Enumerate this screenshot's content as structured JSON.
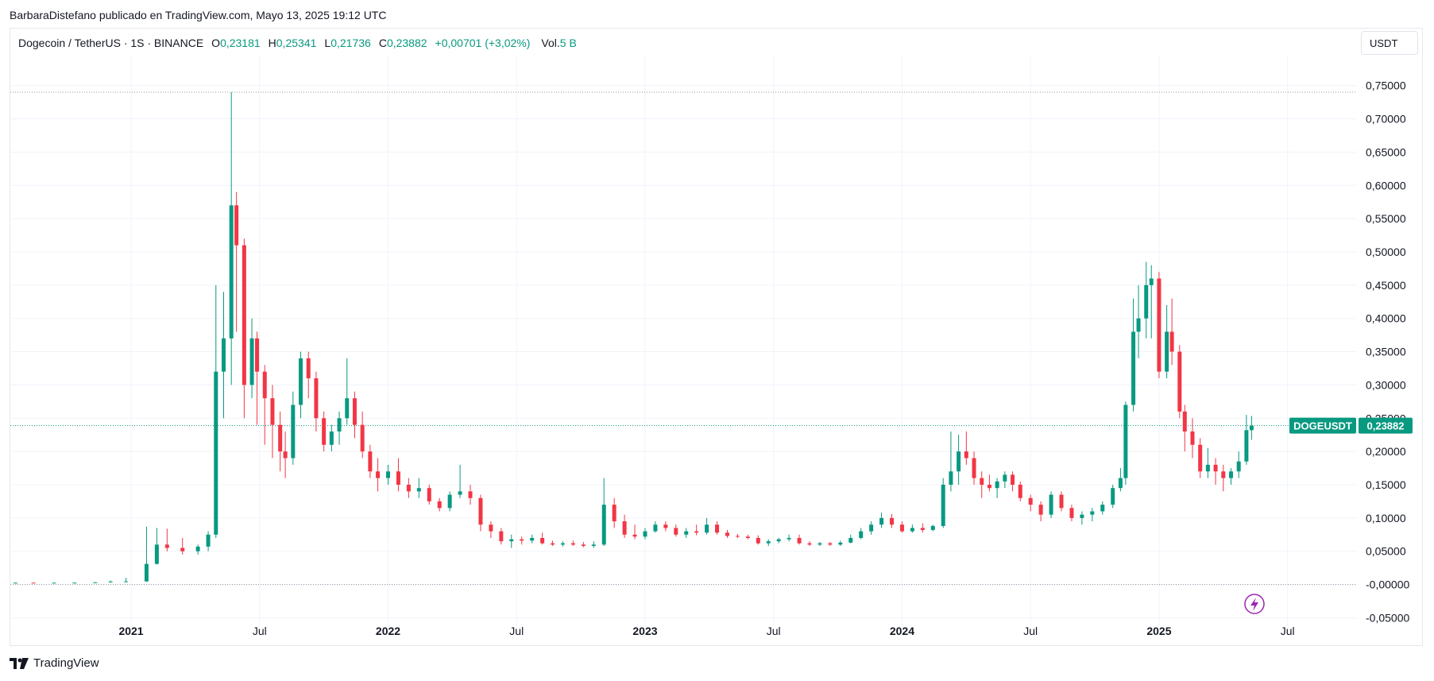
{
  "header": {
    "published_text": "BarbaraDistefano publicado en TradingView.com, Mayo 13, 2025 19:12 UTC"
  },
  "legend": {
    "symbol": "Dogecoin / TetherUS · 1S · BINANCE",
    "open_label": "O",
    "open_value": "0,23181",
    "high_label": "H",
    "high_value": "0,25341",
    "low_label": "L",
    "low_value": "0,21736",
    "close_label": "C",
    "close_value": "0,23882",
    "change": "+0,00701 (+3,02%)",
    "volume_label": "Vol.",
    "volume_value": "5 B"
  },
  "currency_button": "USDT",
  "price_tag": {
    "symbol": "DOGEUSDT",
    "price": "0,23882"
  },
  "footer": {
    "logo_text": "TradingView"
  },
  "colors": {
    "up": "#089981",
    "down": "#f23645",
    "grid": "#f0f3fa",
    "accent_icon": "#9c27b0"
  },
  "chart_data": {
    "type": "candlestick",
    "interval": "1W",
    "y_axis": {
      "ticks": [
        "0,75000",
        "0,70000",
        "0,65000",
        "0,60000",
        "0,55000",
        "0,50000",
        "0,45000",
        "0,40000",
        "0,35000",
        "0,30000",
        "0,25000",
        "0,20000",
        "0,15000",
        "0,10000",
        "0,05000",
        "-0,00000",
        "-0,05000"
      ],
      "tick_values": [
        0.75,
        0.7,
        0.65,
        0.6,
        0.55,
        0.5,
        0.45,
        0.4,
        0.35,
        0.3,
        0.25,
        0.2,
        0.15,
        0.1,
        0.05,
        0.0,
        -0.05
      ],
      "range": [
        -0.065,
        0.795
      ]
    },
    "x_axis": {
      "ticks": [
        {
          "label": "2021",
          "bold": true,
          "t": 2021.0
        },
        {
          "label": "Jul",
          "bold": false,
          "t": 2021.5
        },
        {
          "label": "2022",
          "bold": true,
          "t": 2022.0
        },
        {
          "label": "Jul",
          "bold": false,
          "t": 2022.5
        },
        {
          "label": "2023",
          "bold": true,
          "t": 2023.0
        },
        {
          "label": "Jul",
          "bold": false,
          "t": 2023.5
        },
        {
          "label": "2024",
          "bold": true,
          "t": 2024.0
        },
        {
          "label": "Jul",
          "bold": false,
          "t": 2024.5
        },
        {
          "label": "2025",
          "bold": true,
          "t": 2025.0
        },
        {
          "label": "Jul",
          "bold": false,
          "t": 2025.5
        }
      ],
      "range": [
        2020.53,
        2025.77
      ]
    },
    "reference_lines": [
      0.74,
      0.0
    ],
    "last_price": 0.23882,
    "candles": [
      [
        2020.55,
        0.0026,
        0.0028,
        0.0025,
        0.0027
      ],
      [
        2020.62,
        0.0027,
        0.0029,
        0.0026,
        0.0026
      ],
      [
        2020.7,
        0.0026,
        0.0028,
        0.0025,
        0.0027
      ],
      [
        2020.78,
        0.0027,
        0.003,
        0.0026,
        0.0028
      ],
      [
        2020.86,
        0.0028,
        0.0035,
        0.0027,
        0.0033
      ],
      [
        2020.92,
        0.0033,
        0.006,
        0.003,
        0.0045
      ],
      [
        2020.98,
        0.0045,
        0.01,
        0.004,
        0.0047
      ],
      [
        2021.06,
        0.0047,
        0.087,
        0.004,
        0.031
      ],
      [
        2021.1,
        0.031,
        0.085,
        0.03,
        0.06
      ],
      [
        2021.14,
        0.06,
        0.084,
        0.05,
        0.055
      ],
      [
        2021.2,
        0.055,
        0.07,
        0.045,
        0.05
      ],
      [
        2021.26,
        0.05,
        0.06,
        0.045,
        0.057
      ],
      [
        2021.3,
        0.057,
        0.08,
        0.05,
        0.075
      ],
      [
        2021.33,
        0.075,
        0.45,
        0.07,
        0.32
      ],
      [
        2021.36,
        0.32,
        0.44,
        0.25,
        0.37
      ],
      [
        2021.39,
        0.37,
        0.74,
        0.3,
        0.57
      ],
      [
        2021.41,
        0.57,
        0.59,
        0.38,
        0.51
      ],
      [
        2021.44,
        0.51,
        0.52,
        0.25,
        0.3
      ],
      [
        2021.47,
        0.3,
        0.4,
        0.28,
        0.37
      ],
      [
        2021.49,
        0.37,
        0.38,
        0.24,
        0.32
      ],
      [
        2021.52,
        0.32,
        0.33,
        0.21,
        0.28
      ],
      [
        2021.55,
        0.28,
        0.3,
        0.19,
        0.24
      ],
      [
        2021.58,
        0.24,
        0.26,
        0.17,
        0.2
      ],
      [
        2021.6,
        0.2,
        0.23,
        0.16,
        0.19
      ],
      [
        2021.63,
        0.19,
        0.29,
        0.18,
        0.27
      ],
      [
        2021.66,
        0.27,
        0.35,
        0.25,
        0.34
      ],
      [
        2021.69,
        0.34,
        0.35,
        0.28,
        0.31
      ],
      [
        2021.72,
        0.31,
        0.32,
        0.23,
        0.25
      ],
      [
        2021.75,
        0.25,
        0.26,
        0.2,
        0.21
      ],
      [
        2021.78,
        0.21,
        0.24,
        0.2,
        0.23
      ],
      [
        2021.81,
        0.23,
        0.26,
        0.21,
        0.25
      ],
      [
        2021.84,
        0.25,
        0.34,
        0.24,
        0.28
      ],
      [
        2021.87,
        0.28,
        0.29,
        0.22,
        0.24
      ],
      [
        2021.9,
        0.24,
        0.26,
        0.19,
        0.2
      ],
      [
        2021.93,
        0.2,
        0.21,
        0.16,
        0.17
      ],
      [
        2021.96,
        0.17,
        0.19,
        0.14,
        0.16
      ],
      [
        2022.0,
        0.16,
        0.18,
        0.15,
        0.17
      ],
      [
        2022.04,
        0.17,
        0.19,
        0.14,
        0.15
      ],
      [
        2022.08,
        0.15,
        0.16,
        0.13,
        0.14
      ],
      [
        2022.12,
        0.14,
        0.16,
        0.13,
        0.145
      ],
      [
        2022.16,
        0.145,
        0.15,
        0.12,
        0.125
      ],
      [
        2022.2,
        0.125,
        0.13,
        0.11,
        0.115
      ],
      [
        2022.24,
        0.115,
        0.14,
        0.11,
        0.135
      ],
      [
        2022.28,
        0.135,
        0.18,
        0.13,
        0.14
      ],
      [
        2022.32,
        0.14,
        0.15,
        0.12,
        0.13
      ],
      [
        2022.36,
        0.13,
        0.135,
        0.08,
        0.09
      ],
      [
        2022.4,
        0.09,
        0.095,
        0.07,
        0.08
      ],
      [
        2022.44,
        0.08,
        0.085,
        0.06,
        0.065
      ],
      [
        2022.48,
        0.065,
        0.075,
        0.055,
        0.068
      ],
      [
        2022.52,
        0.068,
        0.072,
        0.06,
        0.066
      ],
      [
        2022.56,
        0.066,
        0.075,
        0.062,
        0.07
      ],
      [
        2022.6,
        0.07,
        0.078,
        0.06,
        0.062
      ],
      [
        2022.64,
        0.062,
        0.066,
        0.058,
        0.06
      ],
      [
        2022.68,
        0.06,
        0.065,
        0.057,
        0.062
      ],
      [
        2022.72,
        0.062,
        0.066,
        0.058,
        0.06
      ],
      [
        2022.76,
        0.06,
        0.064,
        0.056,
        0.058
      ],
      [
        2022.8,
        0.058,
        0.065,
        0.055,
        0.06
      ],
      [
        2022.84,
        0.06,
        0.16,
        0.058,
        0.12
      ],
      [
        2022.88,
        0.12,
        0.13,
        0.085,
        0.095
      ],
      [
        2022.92,
        0.095,
        0.105,
        0.07,
        0.075
      ],
      [
        2022.96,
        0.075,
        0.09,
        0.068,
        0.072
      ],
      [
        2023.0,
        0.072,
        0.085,
        0.068,
        0.08
      ],
      [
        2023.04,
        0.08,
        0.095,
        0.078,
        0.09
      ],
      [
        2023.08,
        0.09,
        0.095,
        0.08,
        0.085
      ],
      [
        2023.12,
        0.085,
        0.09,
        0.072,
        0.075
      ],
      [
        2023.16,
        0.075,
        0.085,
        0.07,
        0.08
      ],
      [
        2023.2,
        0.08,
        0.09,
        0.074,
        0.078
      ],
      [
        2023.24,
        0.078,
        0.1,
        0.075,
        0.09
      ],
      [
        2023.28,
        0.09,
        0.095,
        0.075,
        0.078
      ],
      [
        2023.32,
        0.078,
        0.082,
        0.07,
        0.073
      ],
      [
        2023.36,
        0.073,
        0.076,
        0.07,
        0.072
      ],
      [
        2023.4,
        0.072,
        0.075,
        0.068,
        0.07
      ],
      [
        2023.44,
        0.07,
        0.074,
        0.06,
        0.062
      ],
      [
        2023.48,
        0.062,
        0.068,
        0.058,
        0.065
      ],
      [
        2023.52,
        0.065,
        0.07,
        0.062,
        0.068
      ],
      [
        2023.56,
        0.068,
        0.075,
        0.065,
        0.07
      ],
      [
        2023.6,
        0.07,
        0.075,
        0.06,
        0.062
      ],
      [
        2023.64,
        0.062,
        0.065,
        0.058,
        0.06
      ],
      [
        2023.68,
        0.06,
        0.064,
        0.058,
        0.062
      ],
      [
        2023.72,
        0.062,
        0.064,
        0.058,
        0.06
      ],
      [
        2023.76,
        0.06,
        0.066,
        0.058,
        0.063
      ],
      [
        2023.8,
        0.063,
        0.075,
        0.062,
        0.07
      ],
      [
        2023.84,
        0.07,
        0.085,
        0.068,
        0.08
      ],
      [
        2023.88,
        0.08,
        0.095,
        0.075,
        0.09
      ],
      [
        2023.92,
        0.09,
        0.108,
        0.085,
        0.1
      ],
      [
        2023.96,
        0.1,
        0.106,
        0.085,
        0.09
      ],
      [
        2024.0,
        0.09,
        0.095,
        0.078,
        0.08
      ],
      [
        2024.04,
        0.08,
        0.09,
        0.078,
        0.085
      ],
      [
        2024.08,
        0.085,
        0.092,
        0.078,
        0.082
      ],
      [
        2024.12,
        0.082,
        0.09,
        0.08,
        0.088
      ],
      [
        2024.16,
        0.088,
        0.16,
        0.085,
        0.15
      ],
      [
        2024.19,
        0.15,
        0.23,
        0.14,
        0.17
      ],
      [
        2024.22,
        0.17,
        0.225,
        0.15,
        0.2
      ],
      [
        2024.25,
        0.2,
        0.23,
        0.18,
        0.19
      ],
      [
        2024.28,
        0.19,
        0.2,
        0.15,
        0.16
      ],
      [
        2024.31,
        0.16,
        0.17,
        0.13,
        0.15
      ],
      [
        2024.34,
        0.15,
        0.165,
        0.14,
        0.145
      ],
      [
        2024.37,
        0.145,
        0.16,
        0.13,
        0.155
      ],
      [
        2024.4,
        0.155,
        0.17,
        0.145,
        0.165
      ],
      [
        2024.43,
        0.165,
        0.17,
        0.14,
        0.15
      ],
      [
        2024.46,
        0.15,
        0.155,
        0.125,
        0.13
      ],
      [
        2024.5,
        0.13,
        0.135,
        0.11,
        0.12
      ],
      [
        2024.54,
        0.12,
        0.125,
        0.095,
        0.105
      ],
      [
        2024.58,
        0.105,
        0.14,
        0.1,
        0.135
      ],
      [
        2024.62,
        0.135,
        0.14,
        0.11,
        0.115
      ],
      [
        2024.66,
        0.115,
        0.12,
        0.095,
        0.1
      ],
      [
        2024.7,
        0.1,
        0.11,
        0.09,
        0.105
      ],
      [
        2024.74,
        0.105,
        0.115,
        0.095,
        0.11
      ],
      [
        2024.78,
        0.11,
        0.125,
        0.105,
        0.12
      ],
      [
        2024.82,
        0.12,
        0.15,
        0.115,
        0.145
      ],
      [
        2024.85,
        0.145,
        0.175,
        0.14,
        0.16
      ],
      [
        2024.87,
        0.16,
        0.275,
        0.15,
        0.27
      ],
      [
        2024.9,
        0.27,
        0.43,
        0.26,
        0.38
      ],
      [
        2024.92,
        0.38,
        0.45,
        0.34,
        0.4
      ],
      [
        2024.95,
        0.4,
        0.485,
        0.37,
        0.45
      ],
      [
        2024.97,
        0.45,
        0.48,
        0.37,
        0.46
      ],
      [
        2025.0,
        0.46,
        0.47,
        0.31,
        0.32
      ],
      [
        2025.03,
        0.32,
        0.42,
        0.31,
        0.38
      ],
      [
        2025.05,
        0.38,
        0.43,
        0.33,
        0.35
      ],
      [
        2025.08,
        0.35,
        0.36,
        0.25,
        0.26
      ],
      [
        2025.1,
        0.26,
        0.27,
        0.2,
        0.23
      ],
      [
        2025.13,
        0.23,
        0.25,
        0.19,
        0.21
      ],
      [
        2025.16,
        0.21,
        0.22,
        0.16,
        0.17
      ],
      [
        2025.19,
        0.17,
        0.205,
        0.16,
        0.18
      ],
      [
        2025.22,
        0.18,
        0.19,
        0.15,
        0.17
      ],
      [
        2025.25,
        0.17,
        0.18,
        0.14,
        0.16
      ],
      [
        2025.28,
        0.16,
        0.175,
        0.15,
        0.17
      ],
      [
        2025.31,
        0.17,
        0.2,
        0.16,
        0.185
      ],
      [
        2025.34,
        0.185,
        0.255,
        0.18,
        0.232
      ],
      [
        2025.36,
        0.232,
        0.2534,
        0.2174,
        0.23882
      ]
    ]
  }
}
